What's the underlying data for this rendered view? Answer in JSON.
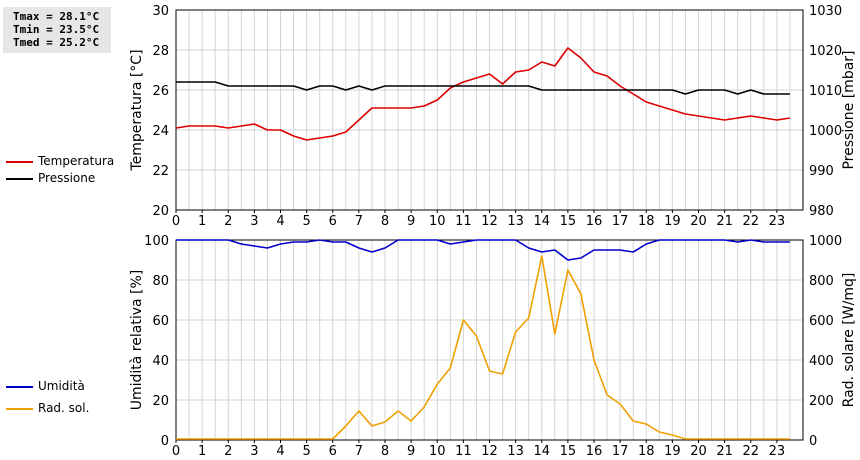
{
  "stats": {
    "tmax": "Tmax = 28.1°C",
    "tmin": "Tmin = 23.5°C",
    "tmed": "Tmed = 25.2°C"
  },
  "legends": {
    "top": [
      {
        "label": "Temperatura",
        "color": "#dd0000"
      },
      {
        "label": "Pressione",
        "color": "#000000"
      }
    ],
    "bottom": [
      {
        "label": "Umidità",
        "color": "#0000cc"
      },
      {
        "label": "Rad. sol.",
        "color": "#f0a000"
      }
    ]
  },
  "chart_data": [
    {
      "type": "line",
      "xlabel": "",
      "ylabel": "Temperatura [°C]",
      "ylabel_right": "Pressione [mbar]",
      "xlim": [
        0,
        24
      ],
      "xticks": [
        "0",
        "1",
        "2",
        "3",
        "4",
        "5",
        "6",
        "7",
        "8",
        "9",
        "10",
        "11",
        "12",
        "13",
        "14",
        "15",
        "16",
        "17",
        "18",
        "19",
        "20",
        "21",
        "22",
        "23"
      ],
      "ylim": [
        20,
        30
      ],
      "yticks": [
        20,
        22,
        24,
        26,
        28,
        30
      ],
      "ylim_right": [
        980,
        1030
      ],
      "yticks_right": [
        980,
        990,
        1000,
        1010,
        1020,
        1030
      ],
      "grid": true,
      "x": [
        0,
        0.5,
        1,
        1.5,
        2,
        2.5,
        3,
        3.5,
        4,
        4.5,
        5,
        5.5,
        6,
        6.5,
        7,
        7.5,
        8,
        8.5,
        9,
        9.5,
        10,
        10.5,
        11,
        11.5,
        12,
        12.5,
        13,
        13.5,
        14,
        14.5,
        15,
        15.5,
        16,
        16.5,
        17,
        17.5,
        18,
        18.5,
        19,
        19.5,
        20,
        20.5,
        21,
        21.5,
        22,
        22.5,
        23,
        23.5
      ],
      "series": [
        {
          "name": "Temperatura",
          "axis": "left",
          "color": "#dd0000",
          "values": [
            24.1,
            24.2,
            24.2,
            24.2,
            24.1,
            24.2,
            24.3,
            24.0,
            24.0,
            23.7,
            23.5,
            23.6,
            23.7,
            23.9,
            24.5,
            25.1,
            25.1,
            25.1,
            25.1,
            25.2,
            25.5,
            26.1,
            26.4,
            26.6,
            26.8,
            26.3,
            26.9,
            27.0,
            27.4,
            27.2,
            28.1,
            27.6,
            26.9,
            26.7,
            26.2,
            25.8,
            25.4,
            25.2,
            25.0,
            24.8,
            24.7,
            24.6,
            24.5,
            24.6,
            24.7,
            24.6,
            24.5,
            24.6
          ]
        },
        {
          "name": "Pressione",
          "axis": "right",
          "color": "#000000",
          "values": [
            1012,
            1012,
            1012,
            1012,
            1011,
            1011,
            1011,
            1011,
            1011,
            1011,
            1010,
            1011,
            1011,
            1010,
            1011,
            1010,
            1011,
            1011,
            1011,
            1011,
            1011,
            1011,
            1011,
            1011,
            1011,
            1011,
            1011,
            1011,
            1010,
            1010,
            1010,
            1010,
            1010,
            1010,
            1010,
            1010,
            1010,
            1010,
            1010,
            1009,
            1010,
            1010,
            1010,
            1009,
            1010,
            1009,
            1009,
            1009
          ]
        }
      ]
    },
    {
      "type": "line",
      "xlabel": "",
      "ylabel": "Umidità relativa [%]",
      "ylabel_right": "Rad. solare [W/mq]",
      "xlim": [
        0,
        24
      ],
      "xticks": [
        "0",
        "1",
        "2",
        "3",
        "4",
        "5",
        "6",
        "7",
        "8",
        "9",
        "10",
        "11",
        "12",
        "13",
        "14",
        "15",
        "16",
        "17",
        "18",
        "19",
        "20",
        "21",
        "22",
        "23"
      ],
      "ylim": [
        0,
        100
      ],
      "yticks": [
        0,
        20,
        40,
        60,
        80,
        100
      ],
      "ylim_right": [
        0,
        1000
      ],
      "yticks_right": [
        0,
        200,
        400,
        600,
        800,
        1000
      ],
      "grid": true,
      "x": [
        0,
        0.5,
        1,
        1.5,
        2,
        2.5,
        3,
        3.5,
        4,
        4.5,
        5,
        5.5,
        6,
        6.5,
        7,
        7.5,
        8,
        8.5,
        9,
        9.5,
        10,
        10.5,
        11,
        11.5,
        12,
        12.5,
        13,
        13.5,
        14,
        14.5,
        15,
        15.5,
        16,
        16.5,
        17,
        17.5,
        18,
        18.5,
        19,
        19.5,
        20,
        20.5,
        21,
        21.5,
        22,
        22.5,
        23,
        23.5
      ],
      "series": [
        {
          "name": "Umidità",
          "axis": "left",
          "color": "#0000cc",
          "values": [
            100,
            100,
            100,
            100,
            100,
            98,
            97,
            96,
            98,
            99,
            99,
            100,
            99,
            99,
            96,
            94,
            96,
            100,
            100,
            100,
            100,
            98,
            99,
            100,
            100,
            100,
            100,
            96,
            94,
            95,
            90,
            91,
            95,
            95,
            95,
            94,
            98,
            100,
            100,
            100,
            100,
            100,
            100,
            99,
            100,
            99,
            99,
            99
          ]
        },
        {
          "name": "Rad. sol.",
          "axis": "right",
          "color": "#f0a000",
          "values": [
            5,
            5,
            5,
            5,
            5,
            5,
            5,
            5,
            5,
            5,
            5,
            5,
            5,
            70,
            145,
            70,
            90,
            145,
            95,
            165,
            280,
            360,
            600,
            520,
            345,
            330,
            540,
            610,
            920,
            530,
            850,
            730,
            400,
            225,
            180,
            95,
            80,
            40,
            25,
            5,
            5,
            5,
            5,
            5,
            5,
            5,
            5,
            5
          ]
        }
      ]
    }
  ]
}
